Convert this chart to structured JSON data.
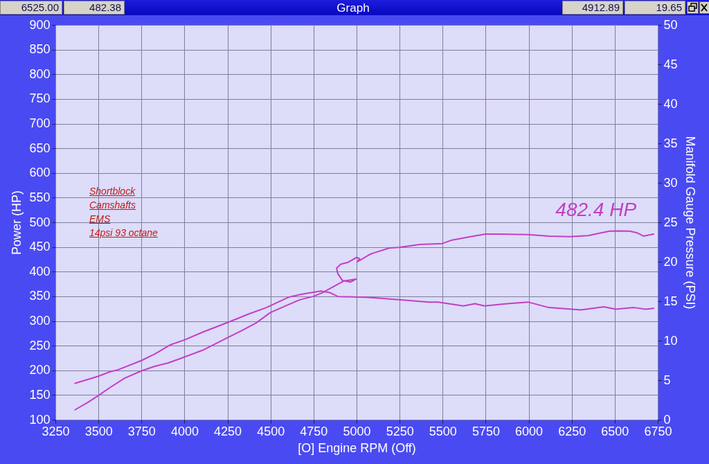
{
  "chart_data": {
    "type": "line",
    "title": "Graph",
    "xlabel": "[O] Engine RPM (Off)",
    "ylabel": "Power (HP)",
    "y2label": "Manifold Gauge Pressure (PSI)",
    "xlim": [
      3250,
      6750
    ],
    "xticks": [
      3250,
      3500,
      3750,
      4000,
      4250,
      4500,
      4750,
      5000,
      5250,
      5500,
      5750,
      6000,
      6250,
      6500,
      6750
    ],
    "ylim": [
      100,
      900
    ],
    "yticks": [
      100,
      150,
      200,
      250,
      300,
      350,
      400,
      450,
      500,
      550,
      600,
      650,
      700,
      750,
      800,
      850,
      900
    ],
    "y2lim": [
      0,
      50
    ],
    "y2ticks": [
      0,
      5,
      10,
      15,
      20,
      25,
      30,
      35,
      40,
      45,
      50
    ],
    "grid": true,
    "series": [
      {
        "color": "#c13fc4",
        "x": [
          3364,
          3438,
          3500,
          3571,
          3652,
          3751,
          3826,
          3906,
          4000,
          4107,
          4250,
          4335,
          4416,
          4499,
          4590,
          4670,
          4750,
          4800,
          4884,
          4925,
          4998,
          4965,
          4918,
          4891,
          4884,
          4908,
          4951,
          5001,
          5018,
          5005,
          5072,
          5092,
          5192,
          5246,
          5367,
          5498,
          5554,
          5662,
          5749,
          5823,
          5996,
          6117,
          6238,
          6345,
          6411,
          6470,
          6525,
          6586,
          6627,
          6667,
          6726
        ],
        "values": [
          120,
          135,
          149,
          166,
          184,
          199,
          208,
          215,
          227,
          241,
          266,
          281,
          296,
          317,
          331,
          343,
          350,
          357,
          373,
          381,
          385,
          379,
          382,
          396,
          407,
          415,
          419,
          429,
          426,
          420,
          434,
          437,
          448,
          449,
          455,
          457,
          464,
          471,
          476,
          476,
          475,
          472,
          471,
          473,
          478,
          482,
          482.4,
          482,
          479,
          472,
          476
        ]
      },
      {
        "color": "#c13fc4",
        "axis": "y2",
        "x": [
          3364,
          3500,
          3571,
          3612,
          3751,
          3826,
          3920,
          4000,
          4107,
          4250,
          4375,
          4476,
          4603,
          4683,
          4791,
          4844,
          4891,
          5059,
          5246,
          5420,
          5474,
          5621,
          5688,
          5743,
          5876,
          5996,
          6117,
          6304,
          6438,
          6505,
          6612,
          6679,
          6726
        ],
        "values": [
          4.6,
          5.5,
          6.1,
          6.3,
          7.5,
          8.3,
          9.5,
          10.1,
          11.1,
          12.3,
          13.4,
          14.2,
          15.5,
          15.9,
          16.3,
          16.1,
          15.6,
          15.5,
          15.2,
          14.9,
          14.9,
          14.4,
          14.7,
          14.4,
          14.7,
          14.9,
          14.2,
          13.9,
          14.3,
          14.0,
          14.2,
          14.0,
          14.1
        ]
      }
    ],
    "annotations": [
      "6525.00",
      "482.38",
      "4912.89",
      "19.65",
      "Shortblock",
      "Camshafts",
      "EMS",
      "14psi 93 octane",
      {
        "text": "482.4 HP",
        "x": 6525,
        "y": 482.4
      }
    ]
  }
}
